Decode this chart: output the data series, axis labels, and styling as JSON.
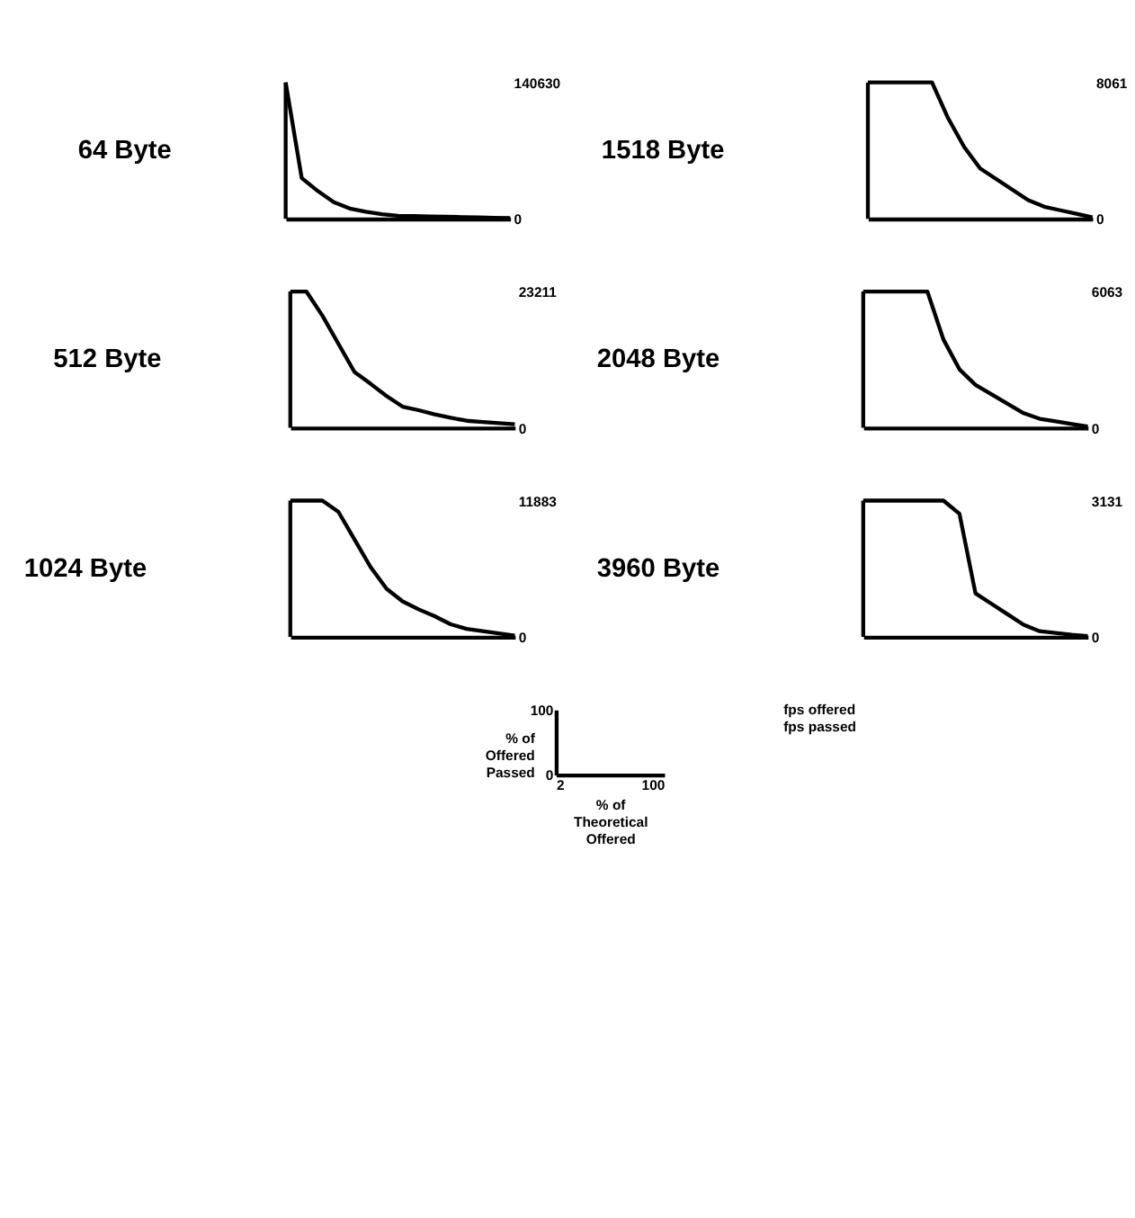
{
  "chart_data": [
    {
      "type": "line",
      "title": "64 Byte",
      "categories": [
        null,
        null,
        null,
        null,
        null,
        null,
        null,
        null,
        null,
        null,
        null,
        null,
        null,
        null,
        null
      ],
      "ylim": [
        0,
        140630
      ],
      "yticks": [
        0,
        140630
      ],
      "tick_labels": "y",
      "series": [
        {
          "color": "#000000",
          "values": [
            140630,
            42000,
            28600,
            17100,
            10500,
            7300,
            4700,
            3100,
            2700,
            2350,
            2000,
            1700,
            1350,
            1000,
            700
          ]
        }
      ]
    },
    {
      "type": "line",
      "title": "1518 Byte",
      "categories": [
        null,
        null,
        null,
        null,
        null,
        null,
        null,
        null,
        null,
        null,
        null,
        null,
        null,
        null,
        null
      ],
      "ylim": [
        0,
        8061
      ],
      "yticks": [
        0,
        8061
      ],
      "tick_labels": "y",
      "series": [
        {
          "color": "#000000",
          "values": [
            8061,
            8061,
            8061,
            8061,
            8061,
            5950,
            4250,
            2970,
            2350,
            1720,
            1100,
            710,
            500,
            290,
            80
          ]
        }
      ]
    },
    {
      "type": "line",
      "title": "512 Byte",
      "categories": [
        null,
        null,
        null,
        null,
        null,
        null,
        null,
        null,
        null,
        null,
        null,
        null,
        null,
        null,
        null
      ],
      "ylim": [
        0,
        23211
      ],
      "yticks": [
        0,
        23211
      ],
      "tick_labels": "y",
      "series": [
        {
          "color": "#000000",
          "values": [
            23211,
            23211,
            19100,
            14300,
            9500,
            7500,
            5400,
            3600,
            3000,
            2300,
            1700,
            1200,
            1000,
            800,
            600
          ]
        }
      ]
    },
    {
      "type": "line",
      "title": "2048 Byte",
      "categories": [
        null,
        null,
        null,
        null,
        null,
        null,
        null,
        null,
        null,
        null,
        null,
        null,
        null,
        null,
        null
      ],
      "ylim": [
        0,
        6063
      ],
      "yticks": [
        0,
        6063
      ],
      "tick_labels": "y",
      "series": [
        {
          "color": "#000000",
          "values": [
            6063,
            6063,
            6063,
            6063,
            6063,
            3930,
            2600,
            1910,
            1490,
            1070,
            650,
            400,
            290,
            170,
            60
          ]
        }
      ]
    },
    {
      "type": "line",
      "title": "1024 Byte",
      "categories": [
        null,
        null,
        null,
        null,
        null,
        null,
        null,
        null,
        null,
        null,
        null,
        null,
        null,
        null,
        null
      ],
      "ylim": [
        0,
        11883
      ],
      "yticks": [
        0,
        11883
      ],
      "tick_labels": "y",
      "series": [
        {
          "color": "#000000",
          "values": [
            11883,
            11883,
            11883,
            10900,
            8500,
            6100,
            4200,
            3100,
            2400,
            1800,
            1100,
            700,
            500,
            300,
            100
          ]
        }
      ]
    },
    {
      "type": "line",
      "title": "3960 Byte",
      "categories": [
        null,
        null,
        null,
        null,
        null,
        null,
        null,
        null,
        null,
        null,
        null,
        null,
        null,
        null,
        null
      ],
      "ylim": [
        0,
        3131
      ],
      "yticks": [
        0,
        3131
      ],
      "tick_labels": "y",
      "series": [
        {
          "color": "#000000",
          "values": [
            3131,
            3131,
            3131,
            3131,
            3131,
            3131,
            2830,
            1000,
            760,
            520,
            280,
            130,
            90,
            50,
            20
          ]
        }
      ]
    },
    {
      "type": "other",
      "xlabel": "% of Theoretical Offered",
      "ylabel": "% of Offered Passed",
      "y2label": "fps offered fps passed",
      "annotations": [
        "0",
        "100",
        "2",
        "100"
      ]
    }
  ]
}
